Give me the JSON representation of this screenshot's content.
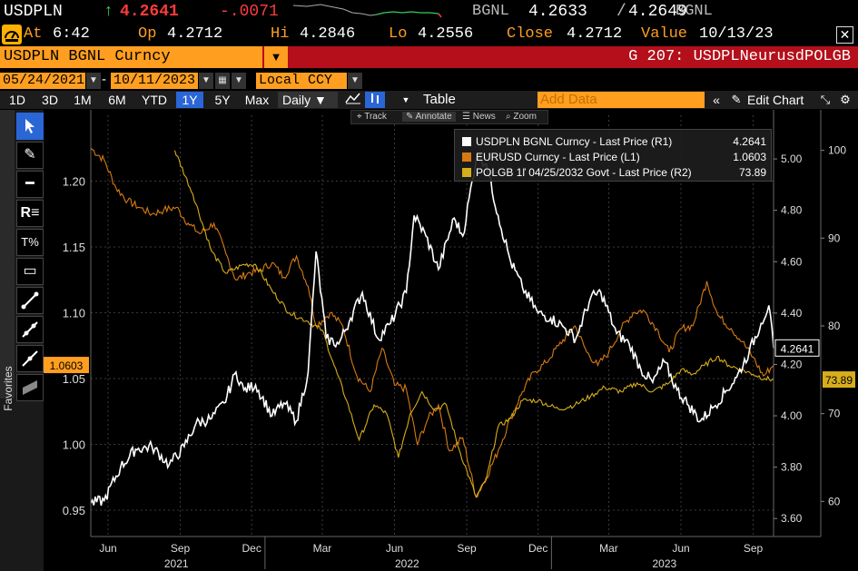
{
  "header": {
    "symbol": "USDPLN",
    "last": "4.2641",
    "change": "-.0071",
    "source": "BGNL",
    "bid": "4.2633",
    "ask": "4.2649",
    "source2": "BGNL",
    "up_arrow": "↑"
  },
  "stats": {
    "at_label": "At",
    "at_value": "6:42",
    "op_label": "Op",
    "op_value": "4.2712",
    "hi_label": "Hi",
    "hi_value": "4.2846",
    "lo_label": "Lo",
    "lo_value": "4.2556",
    "close_label": "Close",
    "close_value": "4.2712",
    "value_label": "Value",
    "value_date": "10/13/23"
  },
  "security": {
    "name": "USDPLN BGNL Curncy",
    "graph_title": "G 207: USDPLNeurusdPOLGB"
  },
  "range": {
    "start": "05/24/2021",
    "end": "10/11/2023",
    "currency": "Local CCY"
  },
  "toolbar": {
    "periods": [
      "1D",
      "3D",
      "1M",
      "6M",
      "YTD",
      "1Y",
      "5Y",
      "Max"
    ],
    "selected_period": "1Y",
    "frequency": "Daily ▼",
    "table_label": "Table",
    "add_data_placeholder": "Add Data",
    "edit_chart_label": "Edit Chart"
  },
  "annotation_bar": {
    "track": "Track",
    "annotate": "Annotate",
    "news": "News",
    "zoom": "Zoom"
  },
  "favorites_label": "Favorites",
  "colors": {
    "orange": "#ff9e1f",
    "red_bar": "#b40f1a",
    "select_blue": "#2a66d6",
    "usdpln": "#ffffff",
    "eurusd": "#d87a12",
    "polgb": "#d6ad1a"
  },
  "chart_data": {
    "type": "line",
    "x_axis": {
      "range": [
        "2021-05-24",
        "2023-10-11"
      ],
      "month_ticks": [
        "Jun",
        "Sep",
        "Dec",
        "Mar",
        "Jun",
        "Sep",
        "Dec",
        "Mar",
        "Jun",
        "Sep"
      ],
      "year_labels": [
        "2021",
        "2022",
        "2023"
      ]
    },
    "left_axis": {
      "ticks": [
        "0.95",
        "1.00",
        "1.05",
        "1.10",
        "1.15",
        "1.20"
      ],
      "range": [
        0.93,
        1.25
      ],
      "tag": "1.0603"
    },
    "right_axis_1": {
      "ticks": [
        "3.60",
        "3.80",
        "4.00",
        "4.20",
        "4.40",
        "4.60",
        "4.80",
        "5.00"
      ],
      "range": [
        3.53,
        5.17
      ],
      "tag": "4.2641"
    },
    "right_axis_2": {
      "ticks": [
        "60",
        "70",
        "80",
        "90",
        "100"
      ],
      "range": [
        56,
        104
      ],
      "tag": "73.89"
    },
    "series": [
      {
        "name": "USDPLN BGNL Curncy - Last Price (R1)",
        "last_value": "4.2641",
        "axis": "R1",
        "points": [
          [
            "2021-05-24",
            3.66
          ],
          [
            "2021-06-10",
            3.67
          ],
          [
            "2021-07-01",
            3.8
          ],
          [
            "2021-07-20",
            3.87
          ],
          [
            "2021-08-10",
            3.88
          ],
          [
            "2021-09-01",
            3.81
          ],
          [
            "2021-09-20",
            3.88
          ],
          [
            "2021-10-05",
            3.97
          ],
          [
            "2021-10-25",
            3.99
          ],
          [
            "2021-11-10",
            4.05
          ],
          [
            "2021-11-25",
            4.17
          ],
          [
            "2021-12-05",
            4.1
          ],
          [
            "2021-12-20",
            4.12
          ],
          [
            "2022-01-10",
            4.0
          ],
          [
            "2022-01-25",
            4.05
          ],
          [
            "2022-02-10",
            3.98
          ],
          [
            "2022-02-25",
            4.17
          ],
          [
            "2022-03-07",
            4.64
          ],
          [
            "2022-03-20",
            4.3
          ],
          [
            "2022-04-05",
            4.28
          ],
          [
            "2022-04-20",
            4.38
          ],
          [
            "2022-05-05",
            4.48
          ],
          [
            "2022-05-25",
            4.3
          ],
          [
            "2022-06-10",
            4.36
          ],
          [
            "2022-06-30",
            4.48
          ],
          [
            "2022-07-10",
            4.78
          ],
          [
            "2022-07-25",
            4.7
          ],
          [
            "2022-08-10",
            4.57
          ],
          [
            "2022-08-30",
            4.77
          ],
          [
            "2022-09-10",
            4.7
          ],
          [
            "2022-09-28",
            5.02
          ],
          [
            "2022-10-10",
            4.98
          ],
          [
            "2022-10-25",
            4.78
          ],
          [
            "2022-11-10",
            4.6
          ],
          [
            "2022-11-25",
            4.5
          ],
          [
            "2022-12-15",
            4.4
          ],
          [
            "2022-12-31",
            4.38
          ],
          [
            "2023-01-15",
            4.35
          ],
          [
            "2023-02-01",
            4.3
          ],
          [
            "2023-02-20",
            4.46
          ],
          [
            "2023-03-05",
            4.48
          ],
          [
            "2023-03-25",
            4.32
          ],
          [
            "2023-04-10",
            4.28
          ],
          [
            "2023-04-25",
            4.18
          ],
          [
            "2023-05-10",
            4.13
          ],
          [
            "2023-05-25",
            4.21
          ],
          [
            "2023-06-10",
            4.1
          ],
          [
            "2023-06-25",
            4.04
          ],
          [
            "2023-07-10",
            3.98
          ],
          [
            "2023-07-25",
            4.03
          ],
          [
            "2023-08-10",
            4.09
          ],
          [
            "2023-08-25",
            4.15
          ],
          [
            "2023-09-10",
            4.25
          ],
          [
            "2023-09-25",
            4.36
          ],
          [
            "2023-10-05",
            4.43
          ],
          [
            "2023-10-11",
            4.2641
          ]
        ]
      },
      {
        "name": "EURUSD Curncy - Last Price (L1)",
        "last_value": "1.0603",
        "axis": "L1",
        "points": [
          [
            "2021-05-24",
            1.225
          ],
          [
            "2021-06-10",
            1.216
          ],
          [
            "2021-06-25",
            1.195
          ],
          [
            "2021-07-10",
            1.185
          ],
          [
            "2021-07-25",
            1.18
          ],
          [
            "2021-08-10",
            1.175
          ],
          [
            "2021-08-25",
            1.178
          ],
          [
            "2021-09-10",
            1.18
          ],
          [
            "2021-09-25",
            1.168
          ],
          [
            "2021-10-10",
            1.16
          ],
          [
            "2021-10-28",
            1.168
          ],
          [
            "2021-11-12",
            1.145
          ],
          [
            "2021-11-25",
            1.125
          ],
          [
            "2021-12-10",
            1.13
          ],
          [
            "2021-12-25",
            1.132
          ],
          [
            "2022-01-10",
            1.138
          ],
          [
            "2022-01-25",
            1.127
          ],
          [
            "2022-02-10",
            1.143
          ],
          [
            "2022-02-25",
            1.12
          ],
          [
            "2022-03-07",
            1.09
          ],
          [
            "2022-03-25",
            1.1
          ],
          [
            "2022-04-10",
            1.09
          ],
          [
            "2022-04-28",
            1.052
          ],
          [
            "2022-05-15",
            1.04
          ],
          [
            "2022-05-30",
            1.073
          ],
          [
            "2022-06-15",
            1.045
          ],
          [
            "2022-06-30",
            1.042
          ],
          [
            "2022-07-14",
            1.0
          ],
          [
            "2022-07-28",
            1.02
          ],
          [
            "2022-08-10",
            1.03
          ],
          [
            "2022-08-24",
            0.995
          ],
          [
            "2022-09-10",
            1.005
          ],
          [
            "2022-09-27",
            0.96
          ],
          [
            "2022-10-10",
            0.975
          ],
          [
            "2022-10-25",
            0.995
          ],
          [
            "2022-11-10",
            1.02
          ],
          [
            "2022-11-25",
            1.04
          ],
          [
            "2022-12-10",
            1.055
          ],
          [
            "2022-12-25",
            1.062
          ],
          [
            "2023-01-10",
            1.075
          ],
          [
            "2023-01-31",
            1.09
          ],
          [
            "2023-02-15",
            1.07
          ],
          [
            "2023-03-01",
            1.06
          ],
          [
            "2023-03-15",
            1.07
          ],
          [
            "2023-03-31",
            1.088
          ],
          [
            "2023-04-15",
            1.1
          ],
          [
            "2023-04-28",
            1.102
          ],
          [
            "2023-05-15",
            1.088
          ],
          [
            "2023-05-31",
            1.07
          ],
          [
            "2023-06-15",
            1.088
          ],
          [
            "2023-06-30",
            1.09
          ],
          [
            "2023-07-18",
            1.124
          ],
          [
            "2023-08-01",
            1.098
          ],
          [
            "2023-08-18",
            1.088
          ],
          [
            "2023-09-01",
            1.078
          ],
          [
            "2023-09-15",
            1.066
          ],
          [
            "2023-09-28",
            1.052
          ],
          [
            "2023-10-11",
            1.0603
          ]
        ]
      },
      {
        "name": "POLGB 1ľ 04/25/2032 Govt - Last Price (R2)",
        "last_value": "73.89",
        "axis": "R2",
        "points": [
          [
            "2021-09-08",
            100.0
          ],
          [
            "2021-10-01",
            95.0
          ],
          [
            "2021-10-25",
            88.5
          ],
          [
            "2021-11-12",
            86.0
          ],
          [
            "2021-12-05",
            87.0
          ],
          [
            "2021-12-20",
            87.0
          ],
          [
            "2022-01-10",
            84.0
          ],
          [
            "2022-02-01",
            81.5
          ],
          [
            "2022-02-25",
            80.5
          ],
          [
            "2022-03-15",
            79.5
          ],
          [
            "2022-03-30",
            75.5
          ],
          [
            "2022-04-15",
            71.5
          ],
          [
            "2022-05-01",
            67.0
          ],
          [
            "2022-05-20",
            71.0
          ],
          [
            "2022-06-05",
            70.0
          ],
          [
            "2022-06-20",
            65.0
          ],
          [
            "2022-07-05",
            70.0
          ],
          [
            "2022-07-20",
            72.5
          ],
          [
            "2022-08-05",
            70.5
          ],
          [
            "2022-08-20",
            71.0
          ],
          [
            "2022-09-05",
            66.0
          ],
          [
            "2022-09-27",
            60.5
          ],
          [
            "2022-10-10",
            62.5
          ],
          [
            "2022-10-25",
            68.5
          ],
          [
            "2022-11-10",
            69.5
          ],
          [
            "2022-11-25",
            71.5
          ],
          [
            "2022-12-15",
            71.5
          ],
          [
            "2023-01-10",
            70.5
          ],
          [
            "2023-01-31",
            71.0
          ],
          [
            "2023-02-20",
            72.0
          ],
          [
            "2023-03-10",
            73.0
          ],
          [
            "2023-03-31",
            72.5
          ],
          [
            "2023-04-20",
            73.5
          ],
          [
            "2023-05-10",
            72.5
          ],
          [
            "2023-05-31",
            73.5
          ],
          [
            "2023-06-15",
            75.0
          ],
          [
            "2023-06-30",
            74.5
          ],
          [
            "2023-07-15",
            75.5
          ],
          [
            "2023-07-31",
            76.5
          ],
          [
            "2023-08-15",
            75.5
          ],
          [
            "2023-08-31",
            75.0
          ],
          [
            "2023-09-15",
            74.5
          ],
          [
            "2023-09-30",
            74.0
          ],
          [
            "2023-10-11",
            73.89
          ]
        ]
      }
    ]
  }
}
